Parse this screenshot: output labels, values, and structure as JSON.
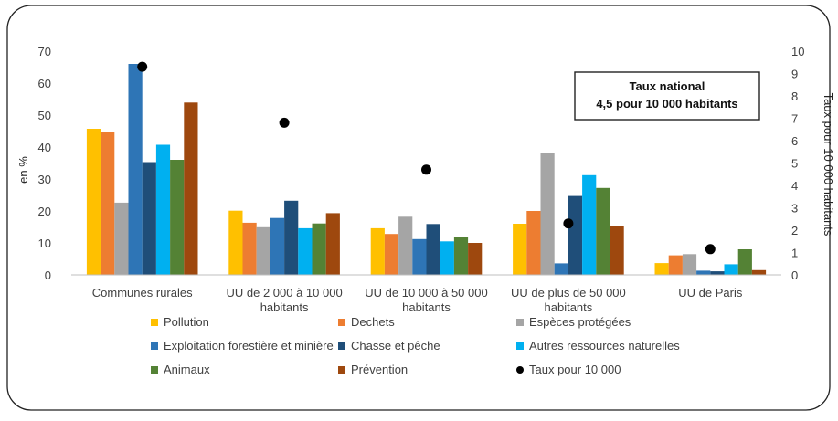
{
  "chart_data": {
    "type": "bar",
    "ylabel": "en %",
    "y2label": "Taux pour  10 000 habitants",
    "ylim": [
      0,
      70
    ],
    "y2lim": [
      0,
      10
    ],
    "y_ticks": [
      "0",
      "10",
      "20",
      "30",
      "40",
      "50",
      "60",
      "70"
    ],
    "y2_ticks": [
      "0",
      "1",
      "2",
      "3",
      "4",
      "5",
      "6",
      "7",
      "8",
      "9",
      "10"
    ],
    "grid": false,
    "legend_position": "bottom",
    "categories": [
      [
        "Communes rurales"
      ],
      [
        "UU de 2 000 à 10 000",
        "habitants"
      ],
      [
        "UU de 10 000 à 50 000",
        "habitants"
      ],
      [
        "UU de plus de 50 000",
        "habitants"
      ],
      [
        "UU de Paris"
      ]
    ],
    "series": [
      {
        "name": "Pollution",
        "color": "#FFC000",
        "values": [
          45.7,
          20.1,
          14.6,
          16.0,
          3.7
        ]
      },
      {
        "name": "Dechets",
        "color": "#ED7D31",
        "values": [
          44.8,
          16.3,
          12.8,
          20.0,
          6.1
        ]
      },
      {
        "name": "Espèces protégées",
        "color": "#A5A5A5",
        "values": [
          22.6,
          14.9,
          18.2,
          38.0,
          6.5
        ]
      },
      {
        "name": "Exploitation forestière et minière",
        "color": "#2E75B6",
        "values": [
          66.0,
          17.8,
          11.2,
          3.6,
          1.3
        ]
      },
      {
        "name": "Chasse et pêche",
        "color": "#1F4E79",
        "values": [
          35.3,
          23.2,
          15.9,
          24.7,
          1.1
        ]
      },
      {
        "name": "Autres ressources naturelles",
        "color": "#00B0F0",
        "values": [
          40.7,
          14.6,
          10.5,
          31.2,
          3.3
        ]
      },
      {
        "name": "Animaux",
        "color": "#548235",
        "values": [
          36.0,
          16.1,
          11.9,
          27.2,
          8.0
        ]
      },
      {
        "name": "Prévention",
        "color": "#9E480E",
        "values": [
          53.9,
          19.3,
          10.0,
          15.4,
          1.5
        ]
      }
    ],
    "rate_series": {
      "name": "Taux pour 10 000",
      "color": "#000000",
      "axis": "right",
      "values": [
        9.3,
        6.8,
        4.7,
        2.3,
        1.15
      ]
    },
    "annotation": [
      "Taux national",
      "4,5 pour 10 000 habitants"
    ]
  }
}
